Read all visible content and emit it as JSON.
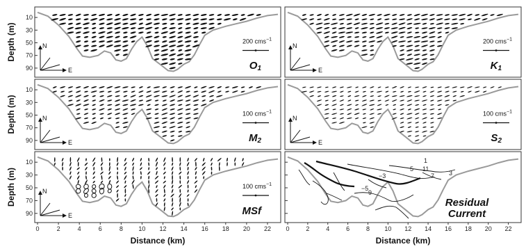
{
  "chart_data": {
    "type": "multi-panel ellipse plot",
    "y_axis_label": "Depth (m)",
    "x_axis_label": "Distance (km)",
    "depth_ticks": [
      "10",
      "30",
      "50",
      "70",
      "90"
    ],
    "distance_ticks": [
      "0",
      "2",
      "4",
      "6",
      "8",
      "10",
      "12",
      "14",
      "16",
      "18",
      "20",
      "22"
    ],
    "x_range_km": [
      0,
      23
    ],
    "depth_range_m": [
      0,
      100
    ],
    "bottom_profile": {
      "distance_km": [
        0,
        1,
        2,
        3,
        3.8,
        4.3,
        5,
        5.8,
        6.4,
        7,
        7.5,
        8,
        8.5,
        9,
        9.5,
        10,
        10.5,
        11,
        11.8,
        12.5,
        13,
        13.4,
        14,
        14.5,
        15,
        15.5,
        16,
        16.8,
        18,
        19,
        20,
        21,
        22,
        23
      ],
      "depth_m": [
        2,
        8,
        22,
        40,
        60,
        71,
        73,
        70,
        63,
        66,
        77,
        79,
        75,
        60,
        48,
        41,
        55,
        75,
        85,
        94,
        95,
        92,
        84,
        80,
        69,
        53,
        38,
        30,
        24,
        20,
        16,
        11,
        7,
        5
      ]
    },
    "panels": [
      {
        "label": "O",
        "label_sub": "1",
        "scale_text": "200 cms",
        "scale_exp": "−1",
        "show_x_ticks": false
      },
      {
        "label": "K",
        "label_sub": "1",
        "scale_text": "200 cms",
        "scale_exp": "−1",
        "show_x_ticks": false
      },
      {
        "label": "M",
        "label_sub": "2",
        "scale_text": "100 cms",
        "scale_exp": "−1",
        "show_x_ticks": false
      },
      {
        "label": "S",
        "label_sub": "2",
        "scale_text": "100 cms",
        "scale_exp": "−1",
        "show_x_ticks": false
      },
      {
        "label": "MSf",
        "label_sub": "",
        "scale_text": "100 cms",
        "scale_exp": "−1",
        "show_x_ticks": true
      },
      {
        "label": "Residual",
        "label2": "Current",
        "show_x_ticks": true
      }
    ],
    "compass": {
      "north": "N",
      "east": "E"
    },
    "residual_contour_labels": [
      "1",
      "3",
      "5",
      "7",
      "9",
      "11",
      "−3",
      "−5"
    ]
  }
}
